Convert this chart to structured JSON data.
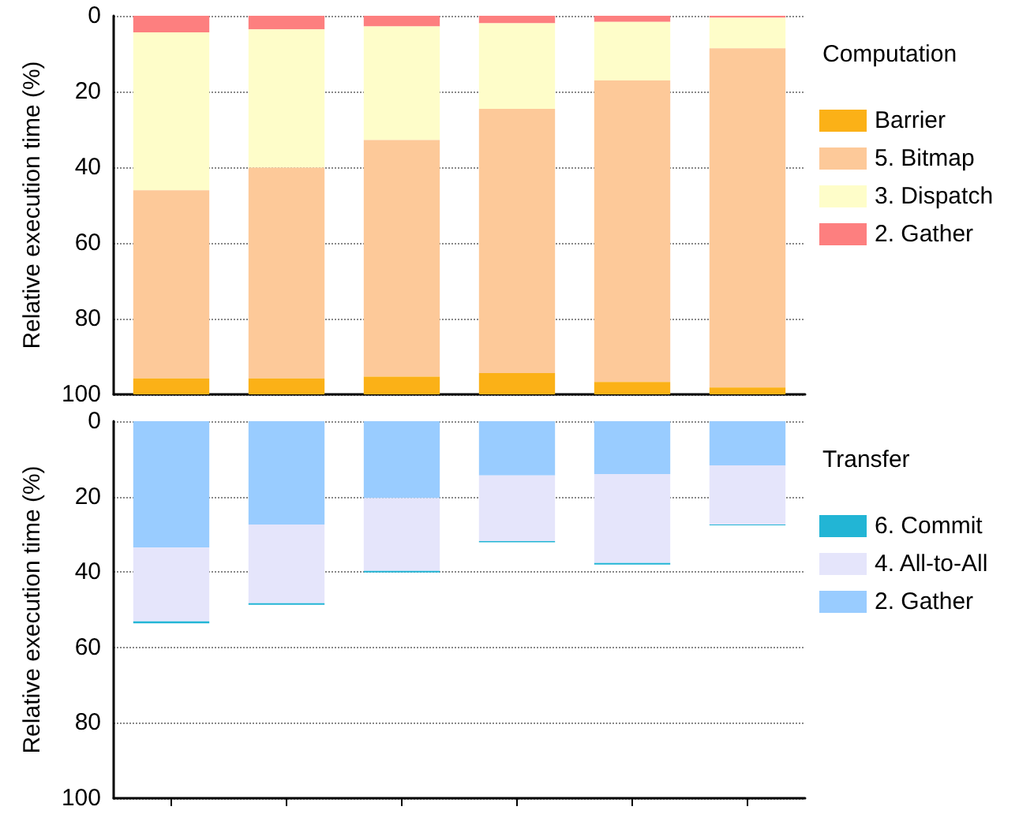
{
  "chart_data": [
    {
      "type": "bar",
      "stacked": true,
      "ylabel": "Relative execution time (%)",
      "legend_title": "Computation",
      "legend": "right",
      "grid": "y",
      "categories": [
        null,
        null,
        null,
        null,
        null,
        null
      ],
      "ylim": [
        100,
        0
      ],
      "yticks": [
        0,
        20,
        40,
        60,
        80,
        100
      ],
      "series": [
        {
          "name": "2. Gather",
          "color": "#fd7f7f",
          "values": [
            4.4,
            3.6,
            2.8,
            2.0,
            1.6,
            0.5
          ]
        },
        {
          "name": "3. Dispatch",
          "color": "#fefdc9",
          "values": [
            41.7,
            36.5,
            30.0,
            22.6,
            15.5,
            8.1
          ]
        },
        {
          "name": "5. Bitmap",
          "color": "#fdc999",
          "values": [
            49.7,
            55.7,
            62.5,
            69.8,
            79.6,
            89.6
          ]
        },
        {
          "name": "Barrier",
          "color": "#fbb117",
          "values": [
            4.2,
            4.2,
            4.7,
            5.6,
            3.3,
            1.8
          ]
        }
      ]
    },
    {
      "type": "bar",
      "stacked": true,
      "ylabel": "Relative execution time (%)",
      "legend_title": "Transfer",
      "legend": "right",
      "grid": "y",
      "categories": [
        null,
        null,
        null,
        null,
        null,
        null
      ],
      "ylim": [
        100,
        0
      ],
      "yticks": [
        0,
        20,
        40,
        60,
        80,
        100
      ],
      "series": [
        {
          "name": "2. Gather",
          "color": "#99ccff",
          "values": [
            33.5,
            27.4,
            20.4,
            14.4,
            14.0,
            11.7
          ]
        },
        {
          "name": "4. All-to-All",
          "color": "#e5e5fb",
          "values": [
            19.6,
            20.9,
            19.3,
            17.4,
            23.6,
            15.7
          ]
        },
        {
          "name": "6. Commit",
          "color": "#22b5d5",
          "values": [
            0.5,
            0.4,
            0.4,
            0.3,
            0.4,
            0.2
          ]
        }
      ]
    }
  ]
}
